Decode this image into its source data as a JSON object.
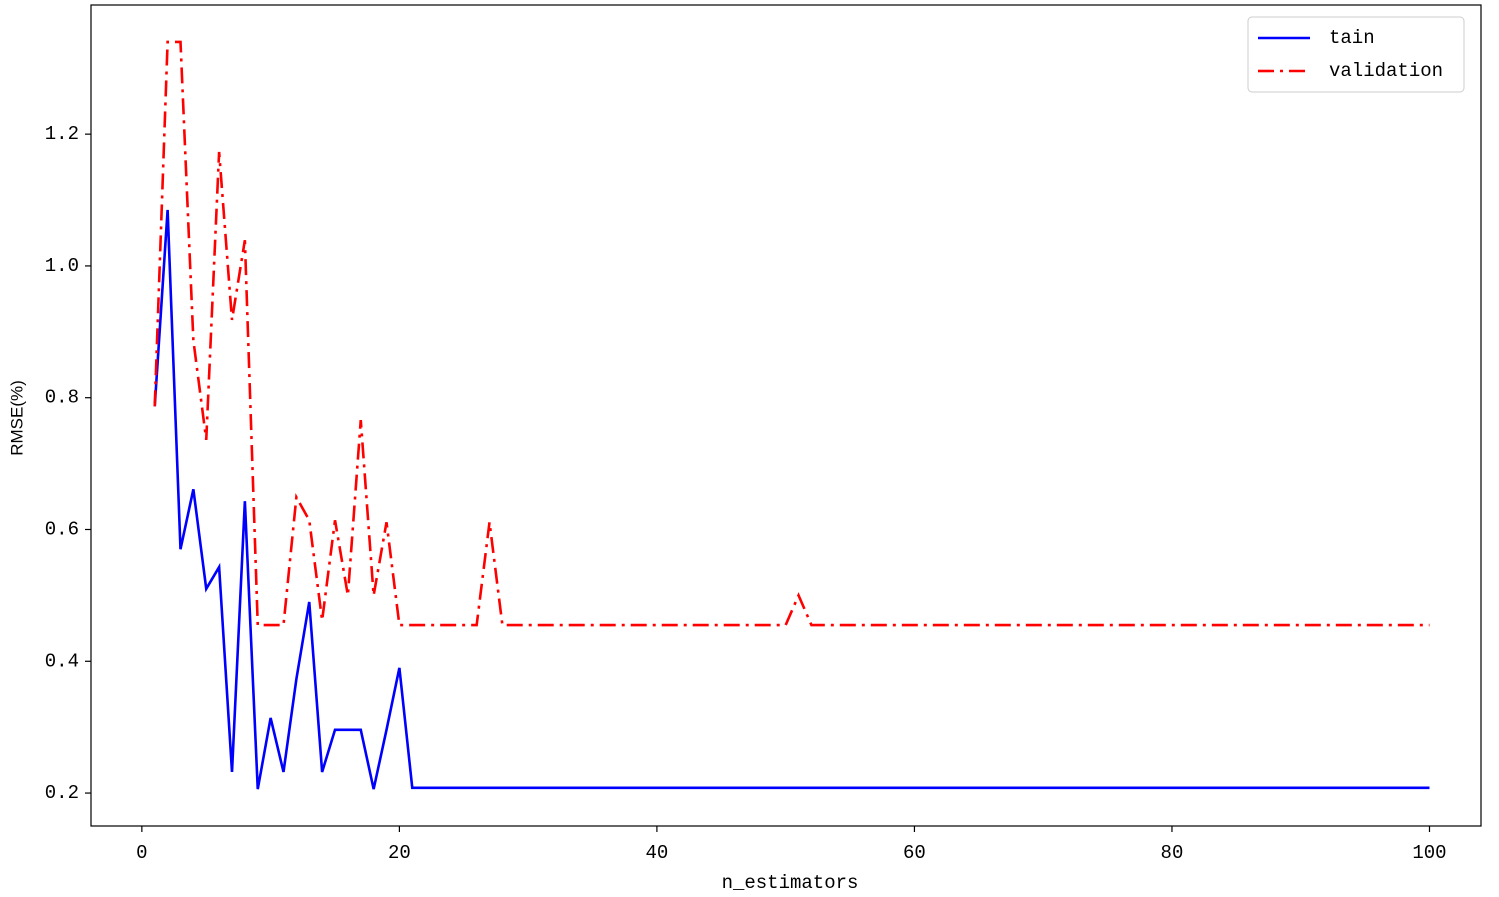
{
  "chart_data": {
    "type": "line",
    "x_label": "n_estimators",
    "y_label": "RMSE(%)",
    "x": [
      1,
      2,
      3,
      4,
      5,
      6,
      7,
      8,
      9,
      10,
      11,
      12,
      13,
      14,
      15,
      16,
      17,
      18,
      19,
      20,
      21,
      22,
      23,
      24,
      25,
      26,
      27,
      28,
      29,
      30,
      31,
      32,
      33,
      34,
      35,
      36,
      37,
      38,
      39,
      40,
      41,
      42,
      43,
      44,
      45,
      46,
      47,
      48,
      49,
      50,
      51,
      52,
      53,
      54,
      55,
      56,
      57,
      58,
      59,
      60,
      61,
      62,
      63,
      64,
      65,
      66,
      67,
      68,
      69,
      70,
      71,
      72,
      73,
      74,
      75,
      76,
      77,
      78,
      79,
      80,
      81,
      82,
      83,
      84,
      85,
      86,
      87,
      88,
      89,
      90,
      91,
      92,
      93,
      94,
      95,
      96,
      97,
      98,
      99,
      100
    ],
    "series": [
      {
        "name": "tain",
        "color": "#0000ff",
        "dash": "solid",
        "values": [
          0.787,
          1.085,
          0.57,
          0.661,
          0.51,
          0.543,
          0.232,
          0.643,
          0.206,
          0.314,
          0.232,
          0.373,
          0.49,
          0.232,
          0.296,
          0.296,
          0.296,
          0.206,
          0.296,
          0.39,
          0.208,
          0.208,
          0.208,
          0.208,
          0.208,
          0.208,
          0.208,
          0.208,
          0.208,
          0.208,
          0.208,
          0.208,
          0.208,
          0.208,
          0.208,
          0.208,
          0.208,
          0.208,
          0.208,
          0.208,
          0.208,
          0.208,
          0.208,
          0.208,
          0.208,
          0.208,
          0.208,
          0.208,
          0.208,
          0.208,
          0.208,
          0.208,
          0.208,
          0.208,
          0.208,
          0.208,
          0.208,
          0.208,
          0.208,
          0.208,
          0.208,
          0.208,
          0.208,
          0.208,
          0.208,
          0.208,
          0.208,
          0.208,
          0.208,
          0.208,
          0.208,
          0.208,
          0.208,
          0.208,
          0.208,
          0.208,
          0.208,
          0.208,
          0.208,
          0.208,
          0.208,
          0.208,
          0.208,
          0.208,
          0.208,
          0.208,
          0.208,
          0.208,
          0.208,
          0.208,
          0.208,
          0.208,
          0.208,
          0.208,
          0.208,
          0.208,
          0.208,
          0.208,
          0.208,
          0.208
        ]
      },
      {
        "name": "validation",
        "color": "#ff0000",
        "dash": "dashdot",
        "values": [
          0.787,
          1.34,
          1.34,
          0.887,
          0.736,
          1.173,
          0.918,
          1.039,
          0.455,
          0.455,
          0.455,
          0.649,
          0.614,
          0.462,
          0.614,
          0.5,
          0.766,
          0.5,
          0.611,
          0.455,
          0.455,
          0.455,
          0.455,
          0.455,
          0.455,
          0.455,
          0.611,
          0.455,
          0.455,
          0.455,
          0.455,
          0.455,
          0.455,
          0.455,
          0.455,
          0.455,
          0.455,
          0.455,
          0.455,
          0.455,
          0.455,
          0.455,
          0.455,
          0.455,
          0.455,
          0.455,
          0.455,
          0.455,
          0.455,
          0.455,
          0.5,
          0.455,
          0.455,
          0.455,
          0.455,
          0.455,
          0.455,
          0.455,
          0.455,
          0.455,
          0.455,
          0.455,
          0.455,
          0.455,
          0.455,
          0.455,
          0.455,
          0.455,
          0.455,
          0.455,
          0.455,
          0.455,
          0.455,
          0.455,
          0.455,
          0.455,
          0.455,
          0.455,
          0.455,
          0.455,
          0.455,
          0.455,
          0.455,
          0.455,
          0.455,
          0.455,
          0.455,
          0.455,
          0.455,
          0.455,
          0.455,
          0.455,
          0.455,
          0.455,
          0.455,
          0.455,
          0.455,
          0.455,
          0.455,
          0.455
        ]
      }
    ],
    "xlim": [
      -3.95,
      104
    ],
    "ylim": [
      0.15,
      1.396
    ],
    "xticks": [
      0,
      20,
      40,
      60,
      80,
      100
    ],
    "yticks": [
      0.2,
      0.4,
      0.6,
      0.8,
      {
        "value": 1,
        "label": "1.0"
      },
      1.2
    ],
    "legend": "upper right",
    "grid": false
  }
}
